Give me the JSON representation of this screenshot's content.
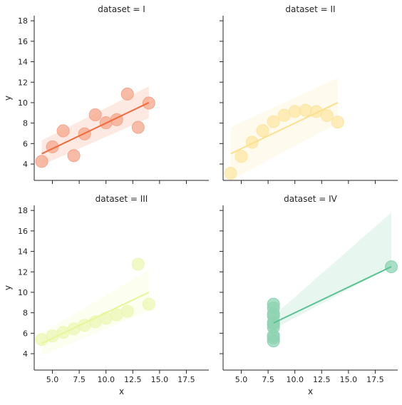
{
  "chart_data": {
    "type": "scatter",
    "facet_title_prefix": "dataset = ",
    "xlabel": "x",
    "ylabel": "y",
    "xlim": [
      3.3,
      19.6
    ],
    "ylim": [
      2.4,
      18.5
    ],
    "xticks": [
      5,
      7.5,
      10,
      12.5,
      15,
      17.5
    ],
    "xtick_labels": [
      "5.0",
      "7.5",
      "10.0",
      "12.5",
      "15.0",
      "17.5"
    ],
    "yticks": [
      4,
      6,
      8,
      10,
      12,
      14,
      16,
      18
    ],
    "ytick_labels": [
      "4",
      "6",
      "8",
      "10",
      "12",
      "14",
      "16",
      "18"
    ],
    "show_regression_line": true,
    "show_confidence_band": true,
    "panels": [
      {
        "dataset": "I",
        "title": "dataset = I",
        "color": "#ef6c3f",
        "marker_color": "#f4a58a",
        "x": [
          10,
          8,
          13,
          9,
          11,
          14,
          6,
          4,
          12,
          7,
          5
        ],
        "y": [
          8.04,
          6.95,
          7.58,
          8.81,
          8.33,
          9.96,
          7.24,
          4.26,
          10.84,
          4.82,
          5.68
        ],
        "fit_line": {
          "x": [
            4,
            14
          ],
          "y": [
            5.0,
            10.0
          ]
        },
        "ci_band": {
          "x": [
            4,
            14
          ],
          "lower": [
            3.9,
            8.5
          ],
          "upper": [
            6.3,
            11.6
          ]
        }
      },
      {
        "dataset": "II",
        "title": "dataset = II",
        "color": "#fde08e",
        "marker_color": "#fde5a3",
        "x": [
          10,
          8,
          13,
          9,
          11,
          14,
          6,
          4,
          12,
          7,
          5
        ],
        "y": [
          9.14,
          8.14,
          8.74,
          8.77,
          9.26,
          8.1,
          6.13,
          3.1,
          9.13,
          7.26,
          4.74
        ],
        "fit_line": {
          "x": [
            4,
            14
          ],
          "y": [
            5.0,
            10.0
          ]
        },
        "ci_band": {
          "x": [
            4,
            14
          ],
          "lower": [
            2.4,
            8.0
          ],
          "upper": [
            7.6,
            12.4
          ]
        }
      },
      {
        "dataset": "III",
        "title": "dataset = III",
        "color": "#e8f59a",
        "marker_color": "#ecf7b4",
        "x": [
          10,
          8,
          13,
          9,
          11,
          14,
          6,
          4,
          12,
          7,
          5
        ],
        "y": [
          7.46,
          6.77,
          12.74,
          7.11,
          7.81,
          8.84,
          6.08,
          5.39,
          8.15,
          6.42,
          5.73
        ],
        "fit_line": {
          "x": [
            4,
            14
          ],
          "y": [
            5.0,
            10.0
          ]
        },
        "ci_band": {
          "x": [
            4,
            14
          ],
          "lower": [
            3.8,
            8.2
          ],
          "upper": [
            6.0,
            12.2
          ]
        }
      },
      {
        "dataset": "IV",
        "title": "dataset = IV",
        "color": "#5cc194",
        "marker_color": "#8ed3b3",
        "x": [
          8,
          8,
          8,
          8,
          8,
          8,
          8,
          19,
          8,
          8,
          8
        ],
        "y": [
          6.58,
          5.76,
          7.71,
          8.84,
          8.47,
          7.04,
          5.25,
          12.5,
          5.56,
          7.91,
          6.89
        ],
        "fit_line": {
          "x": [
            8,
            19
          ],
          "y": [
            7.0,
            12.5
          ]
        },
        "ci_band": {
          "x": [
            8,
            19
          ],
          "lower": [
            6.4,
            12.5
          ],
          "upper": [
            7.7,
            17.8
          ]
        }
      }
    ]
  }
}
